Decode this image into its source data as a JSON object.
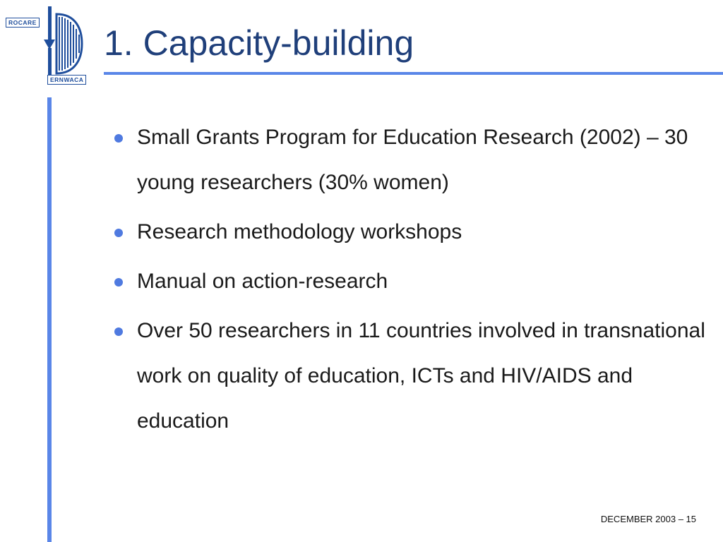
{
  "slide": {
    "title": "1. Capacity-building",
    "bullets": [
      "Small Grants Program for Education Research (2002) – 30 young researchers (30% women)",
      "Research methodology workshops",
      "Manual on action-research",
      "Over 50 researchers in 11 countries involved in transnational work on quality of education, ICTs and HIV/AIDS and education"
    ],
    "footer": "DECEMBER 2003 – 15"
  },
  "logo": {
    "top_text": "ROCARE",
    "bottom_text": "ERNWACA"
  },
  "colors": {
    "title": "#1f3f7a",
    "rule": "#5a86e8",
    "bullet": "#4f7ae0",
    "logo": "#1f4e9c"
  }
}
